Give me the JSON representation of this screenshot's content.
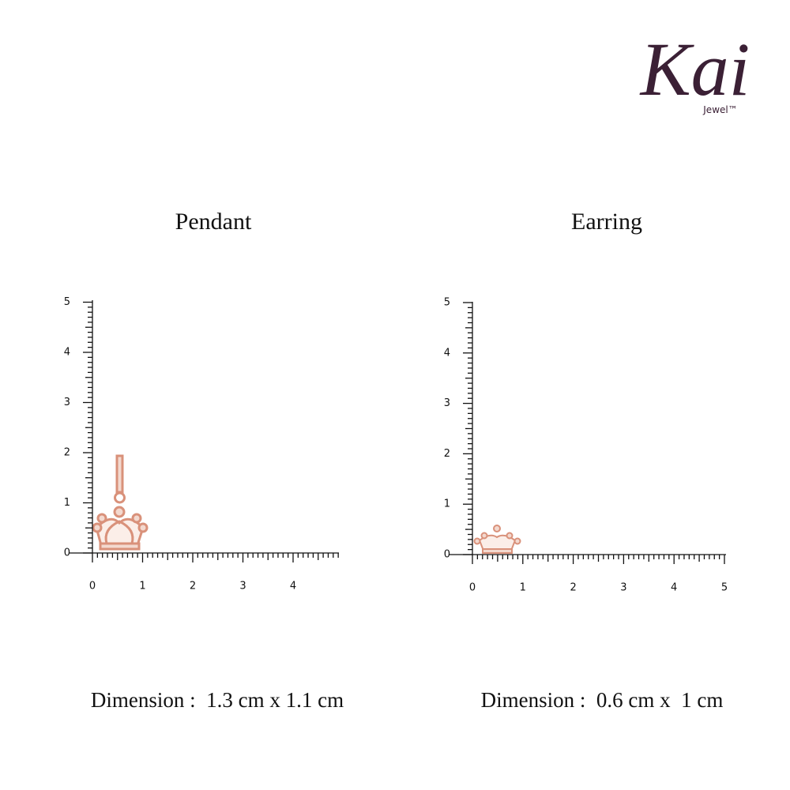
{
  "logo": {
    "brand": "Kai",
    "sub": "Jewel™"
  },
  "panels": [
    {
      "title": "Pendant",
      "y_labels": [
        "0",
        "1",
        "2",
        "3",
        "4",
        "5"
      ],
      "x_labels": [
        "0",
        "1",
        "2",
        "3",
        "4"
      ],
      "dimension": "Dimension :  1.3 cm x 1.1 cm"
    },
    {
      "title": "Earring",
      "y_labels": [
        "0",
        "1",
        "2",
        "3",
        "4",
        "5"
      ],
      "x_labels": [
        "0",
        "1",
        "2",
        "3",
        "4",
        "5"
      ],
      "dimension": "Dimension :  0.6 cm x  1 cm"
    }
  ]
}
